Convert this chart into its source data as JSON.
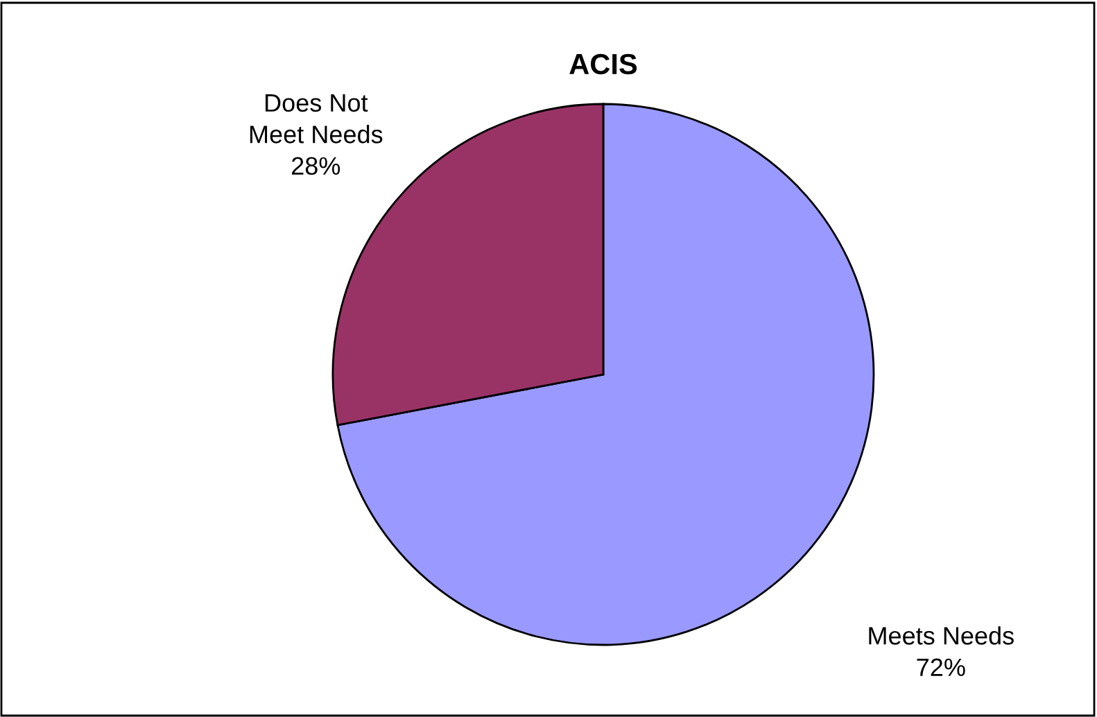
{
  "chart_data": {
    "type": "pie",
    "title": "ACIS",
    "categories": [
      "Meets Needs",
      "Does Not\nMeet Needs"
    ],
    "values": [
      72,
      28
    ],
    "value_labels": [
      "72%",
      "28%"
    ],
    "colors": [
      "#9999ff",
      "#993366"
    ],
    "legend": false
  }
}
